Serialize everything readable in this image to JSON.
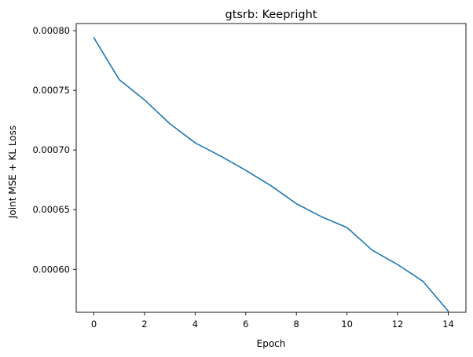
{
  "chart_data": {
    "type": "line",
    "title": "gtsrb: Keepright",
    "xlabel": "Epoch",
    "ylabel": "Joint MSE + KL Loss",
    "xlim": [
      -0.7,
      14.7
    ],
    "ylim": [
      0.000564,
      0.000806
    ],
    "xticks": [
      0,
      2,
      4,
      6,
      8,
      10,
      12,
      14
    ],
    "xtick_labels": [
      "0",
      "2",
      "4",
      "6",
      "8",
      "10",
      "12",
      "14"
    ],
    "yticks": [
      0.0006,
      0.00065,
      0.0007,
      0.00075,
      0.0008
    ],
    "ytick_labels": [
      "0.00060",
      "0.00065",
      "0.00070",
      "0.00075",
      "0.00080"
    ],
    "grid": false,
    "legend": "none",
    "series": [
      {
        "color": "#1f77b4",
        "x": [
          0,
          1,
          2,
          3,
          4,
          5,
          6,
          7,
          8,
          9,
          10,
          11,
          12,
          13,
          14
        ],
        "values": [
          0.000794,
          0.000759,
          0.000742,
          0.000722,
          0.000706,
          0.000695,
          0.000683,
          0.00067,
          0.000655,
          0.000644,
          0.000635,
          0.000616,
          0.000604,
          0.00059,
          0.000565
        ]
      }
    ]
  }
}
